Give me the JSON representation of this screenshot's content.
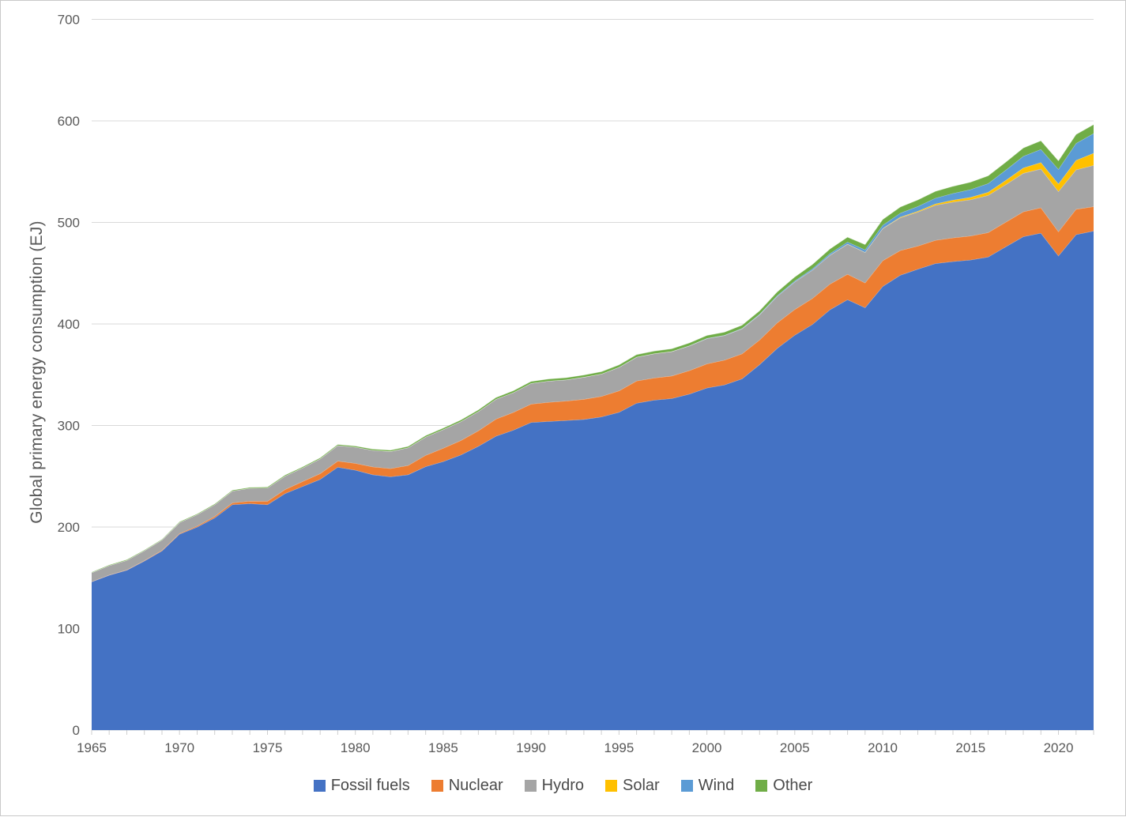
{
  "chart": {
    "y_axis": {
      "title": "Global primary energy consumption (EJ)",
      "ticks": [
        0,
        100,
        200,
        300,
        400,
        500,
        600,
        700
      ]
    },
    "x_axis": {
      "tick_years": [
        1965,
        1970,
        1975,
        1980,
        1985,
        1990,
        1995,
        2000,
        2005,
        2010,
        2015,
        2020
      ]
    },
    "styles": {
      "gridline_color": "#d9d9d9",
      "axis_line_color": "#d9d9d9",
      "tick_mark_color": "#cfcfcf",
      "axis_text_color": "#595959",
      "legend_text_color": "#4a4a4a",
      "background_color": "#ffffff",
      "border_color": "#c9c9c9"
    }
  },
  "legend": {
    "items": [
      {
        "label": "Fossil fuels",
        "color": "#4472C4"
      },
      {
        "label": "Nuclear",
        "color": "#ED7D31"
      },
      {
        "label": "Hydro",
        "color": "#A5A5A5"
      },
      {
        "label": "Solar",
        "color": "#FFC000"
      },
      {
        "label": "Wind",
        "color": "#5B9BD5"
      },
      {
        "label": "Other",
        "color": "#70AD47"
      }
    ]
  },
  "chart_data": {
    "type": "area",
    "stacked": true,
    "title": "",
    "xlabel": "",
    "ylabel": "Global primary energy consumption (EJ)",
    "ylim": [
      0,
      700
    ],
    "xlim": [
      1965,
      2022
    ],
    "grid": true,
    "legend_position": "bottom",
    "x": [
      1965,
      1966,
      1967,
      1968,
      1969,
      1970,
      1971,
      1972,
      1973,
      1974,
      1975,
      1976,
      1977,
      1978,
      1979,
      1980,
      1981,
      1982,
      1983,
      1984,
      1985,
      1986,
      1987,
      1988,
      1989,
      1990,
      1991,
      1992,
      1993,
      1994,
      1995,
      1996,
      1997,
      1998,
      1999,
      2000,
      2001,
      2002,
      2003,
      2004,
      2005,
      2006,
      2007,
      2008,
      2009,
      2010,
      2011,
      2012,
      2013,
      2014,
      2015,
      2016,
      2017,
      2018,
      2019,
      2020,
      2021,
      2022
    ],
    "series": [
      {
        "name": "Fossil fuels",
        "color": "#4472C4",
        "values": [
          146,
          152.5,
          157.5,
          166.5,
          176.5,
          193,
          200,
          209,
          222,
          223,
          222,
          233,
          240,
          247,
          259,
          256,
          251.5,
          249.5,
          251.5,
          259.5,
          264.5,
          271,
          279.5,
          289.5,
          295.5,
          303,
          304,
          305,
          306,
          308.5,
          313,
          322,
          325,
          326.5,
          331,
          337,
          340,
          346,
          360,
          376,
          389,
          399.5,
          414,
          424,
          416,
          437,
          448,
          454,
          459.5,
          461.5,
          463,
          466,
          476,
          486,
          489.5,
          467,
          488,
          491.5
        ]
      },
      {
        "name": "Nuclear",
        "color": "#ED7D31",
        "values": [
          0.3,
          0.35,
          0.4,
          0.5,
          0.6,
          0.7,
          1,
          1.5,
          1.8,
          2.5,
          3.4,
          4,
          4.8,
          5.6,
          6,
          6.7,
          7.7,
          8.1,
          9.1,
          11.2,
          13.2,
          14.2,
          15.4,
          16.8,
          17.6,
          18.1,
          18.9,
          19.1,
          19.8,
          20.2,
          21.2,
          21.9,
          21.8,
          22.3,
          23.1,
          23.7,
          24.4,
          24.6,
          24.3,
          25.2,
          25.3,
          25.6,
          25.3,
          25,
          24.5,
          25.3,
          24.4,
          22.7,
          22.9,
          23.3,
          23.7,
          24,
          24.3,
          24.5,
          25,
          23.9,
          25,
          24.1
        ]
      },
      {
        "name": "Hydro",
        "color": "#A5A5A5",
        "values": [
          8.7,
          9.2,
          9.3,
          9.7,
          10.2,
          10.7,
          11.2,
          11.5,
          11.7,
          12.7,
          13.1,
          13.2,
          13.5,
          14.6,
          15.3,
          16,
          16.4,
          16.9,
          17.5,
          18,
          18.3,
          18.7,
          18.9,
          19.5,
          19.4,
          20.4,
          20.9,
          20.9,
          21.8,
          22,
          23.1,
          23.4,
          23.9,
          24,
          24.3,
          24.9,
          24.2,
          24.6,
          24.8,
          26,
          27.1,
          28,
          28.4,
          29.6,
          29.9,
          31.6,
          32.2,
          33.5,
          34.6,
          35.3,
          35.7,
          36.6,
          37,
          37.9,
          38.2,
          39.5,
          38.8,
          40.7
        ]
      },
      {
        "name": "Solar",
        "color": "#FFC000",
        "values": [
          0,
          0,
          0,
          0,
          0,
          0,
          0,
          0,
          0,
          0,
          0,
          0,
          0,
          0,
          0,
          0,
          0,
          0,
          0,
          0,
          0,
          0,
          0,
          0,
          0.01,
          0.01,
          0.01,
          0.01,
          0.01,
          0.01,
          0.01,
          0.01,
          0.01,
          0.01,
          0.02,
          0.02,
          0.02,
          0.03,
          0.03,
          0.04,
          0.05,
          0.07,
          0.1,
          0.15,
          0.2,
          0.3,
          0.6,
          0.9,
          1.3,
          1.9,
          2.4,
          3.1,
          4.1,
          5.3,
          6.4,
          7.6,
          9.4,
          11.9
        ]
      },
      {
        "name": "Wind",
        "color": "#5B9BD5",
        "values": [
          0,
          0,
          0,
          0,
          0,
          0,
          0,
          0,
          0,
          0,
          0,
          0,
          0,
          0,
          0,
          0,
          0,
          0,
          0,
          0,
          0.01,
          0.01,
          0.02,
          0.02,
          0.03,
          0.04,
          0.04,
          0.05,
          0.05,
          0.06,
          0.07,
          0.08,
          0.11,
          0.14,
          0.19,
          0.28,
          0.34,
          0.47,
          0.56,
          0.75,
          0.94,
          1.2,
          1.55,
          2,
          2.5,
          3.1,
          4,
          4.7,
          5.7,
          6.6,
          7.6,
          8.6,
          10.1,
          11.4,
          12.9,
          14.4,
          16.7,
          19.4
        ]
      },
      {
        "name": "Other",
        "color": "#70AD47",
        "values": [
          0.6,
          0.62,
          0.63,
          0.65,
          0.67,
          0.7,
          0.73,
          0.76,
          0.79,
          0.82,
          0.85,
          0.9,
          0.95,
          1,
          1.05,
          1.1,
          1.16,
          1.22,
          1.28,
          1.34,
          1.4,
          1.5,
          1.6,
          1.7,
          1.8,
          1.9,
          2,
          2.05,
          2.1,
          2.2,
          2.3,
          2.4,
          2.5,
          2.6,
          2.7,
          2.8,
          2.95,
          3.1,
          3.3,
          3.6,
          3.9,
          4.2,
          4.5,
          4.8,
          5.1,
          5.6,
          6,
          6.4,
          6.7,
          7,
          7.3,
          7.6,
          7.9,
          8.2,
          8.5,
          8.3,
          8.8,
          8.8
        ]
      }
    ]
  }
}
